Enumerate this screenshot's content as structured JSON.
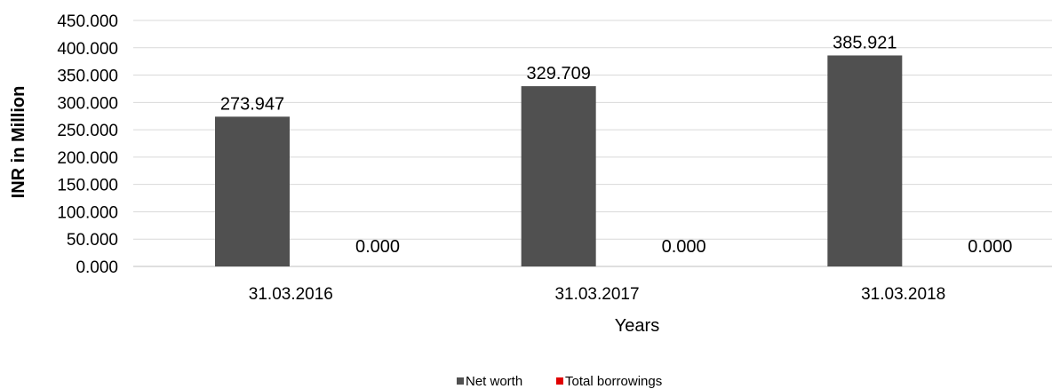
{
  "chart_data": {
    "type": "bar",
    "categories": [
      "31.03.2016",
      "31.03.2017",
      "31.03.2018"
    ],
    "series": [
      {
        "name": "Net worth",
        "values": [
          273.947,
          329.709,
          385.921
        ],
        "labels": [
          "273.947",
          "329.709",
          "385.921"
        ],
        "color": "#505050"
      },
      {
        "name": "Total borrowings",
        "values": [
          0.0,
          0.0,
          0.0
        ],
        "labels": [
          "0.000",
          "0.000",
          "0.000"
        ],
        "color": "#e00000"
      }
    ],
    "title": "",
    "xlabel": "Years",
    "ylabel": "INR in Million",
    "ylim": [
      0,
      450
    ],
    "yticks": [
      "0.000",
      "50.000",
      "100.000",
      "150.000",
      "200.000",
      "250.000",
      "300.000",
      "350.000",
      "400.000",
      "450.000"
    ],
    "grid": true,
    "legend_position": "bottom"
  }
}
